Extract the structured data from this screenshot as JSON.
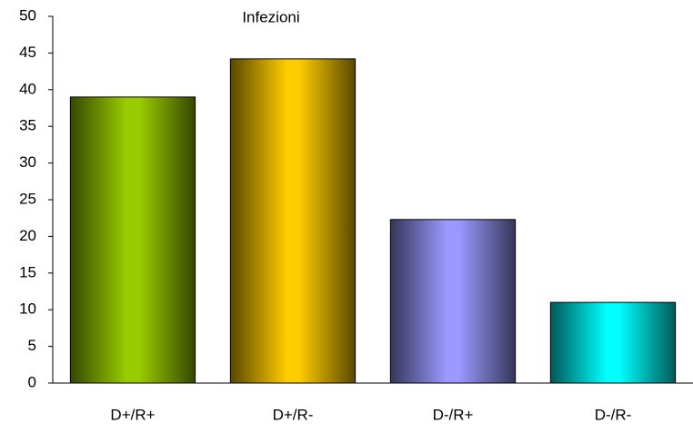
{
  "chart_data": {
    "type": "bar",
    "title": "Infezioni",
    "categories": [
      "D+/R+",
      "D+/R-",
      "D-/R+",
      "D-/R-"
    ],
    "values": [
      39,
      44.2,
      22.3,
      11
    ],
    "colors": [
      "#99cc00",
      "#ffcc00",
      "#9999ff",
      "#00ffff"
    ],
    "ylim": [
      0,
      50
    ],
    "yticks": [
      0,
      5,
      10,
      15,
      20,
      25,
      30,
      35,
      40,
      45,
      50
    ],
    "grid": false
  }
}
